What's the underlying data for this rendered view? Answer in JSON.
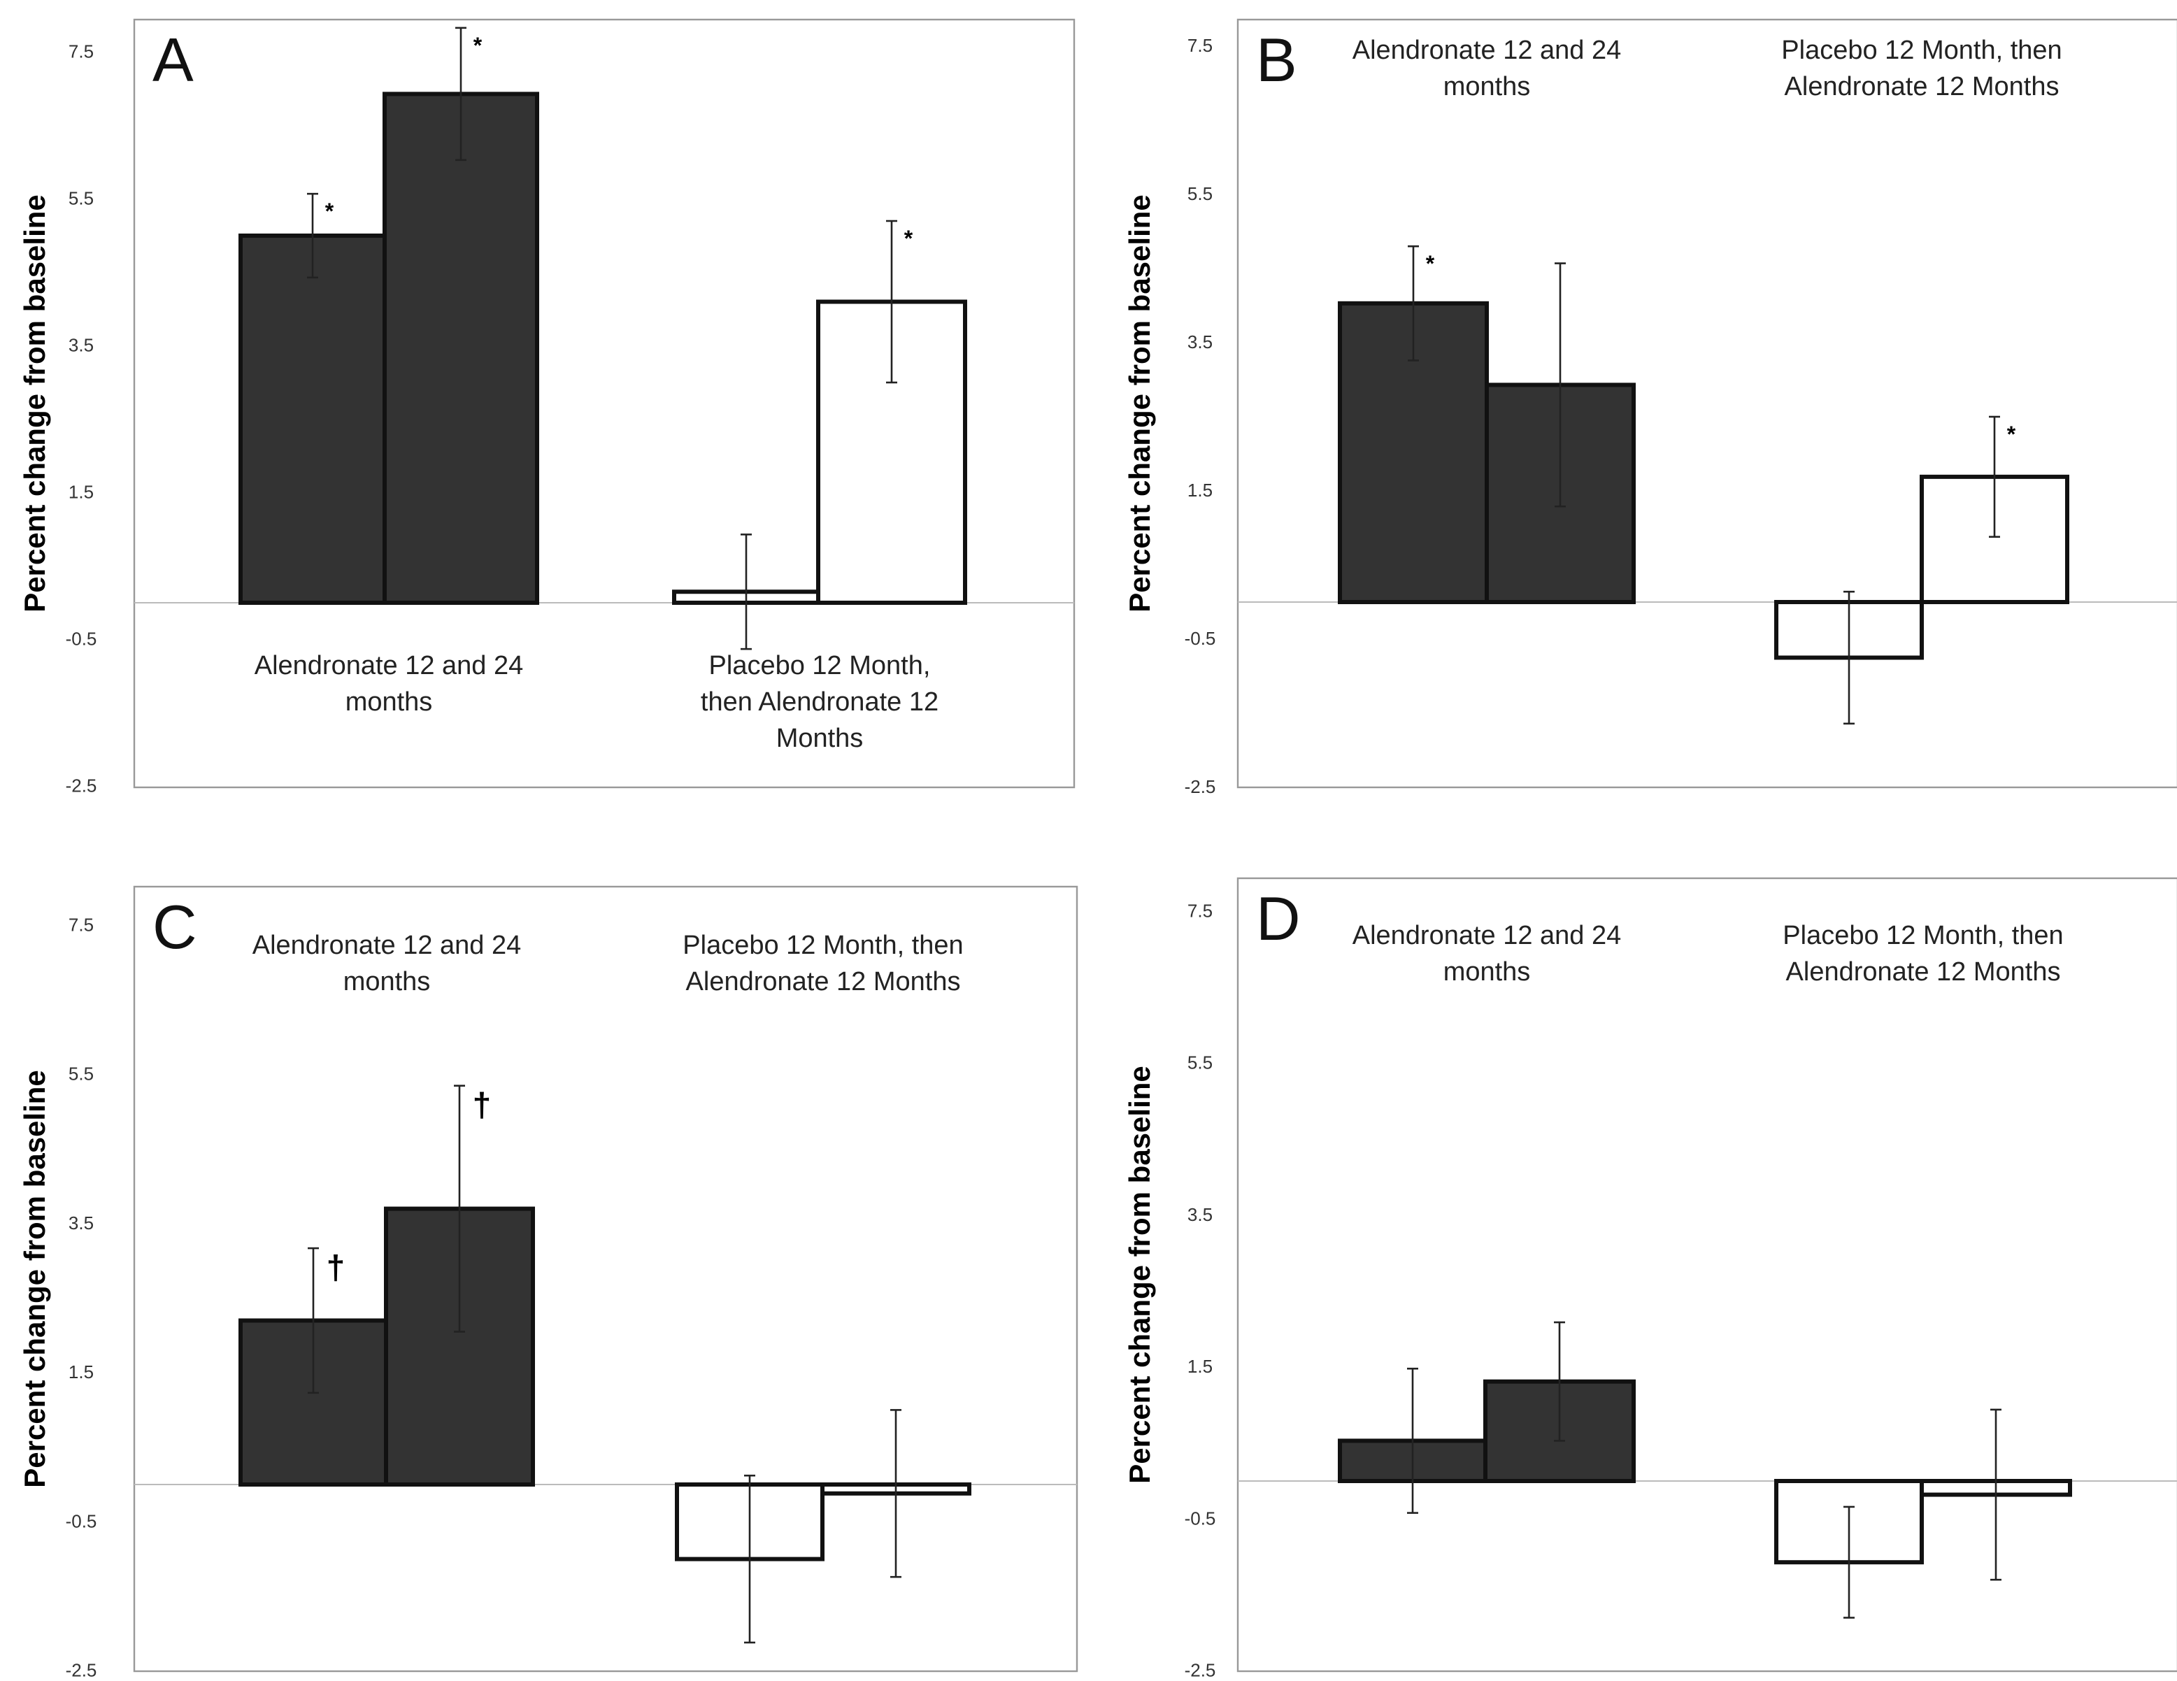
{
  "chart_data": [
    {
      "type": "bar",
      "panel_label": "A",
      "ylabel": "Percent change from baseline",
      "yticks": [
        "7.5",
        "5.5",
        "3.5",
        "1.5",
        "-0.5",
        "-2.5"
      ],
      "ylim": [
        -2.5,
        8.0
      ],
      "groups": [
        {
          "label_lines": [
            "Alendronate 12 and 24",
            "months"
          ],
          "fill": "#333333",
          "bars": [
            {
              "value": 5.0,
              "error": 0.57,
              "annotation": "*"
            },
            {
              "value": 6.93,
              "error": 0.9,
              "annotation": "*"
            }
          ]
        },
        {
          "label_lines": [
            "Placebo 12 Month,",
            "then Alendronate 12",
            "Months"
          ],
          "fill": "#ffffff",
          "bars": [
            {
              "value": 0.15,
              "error": 0.78,
              "annotation": ""
            },
            {
              "value": 4.1,
              "error": 1.1,
              "annotation": "*"
            }
          ]
        }
      ]
    },
    {
      "type": "bar",
      "panel_label": "B",
      "ylabel": "Percent change from baseline",
      "yticks": [
        "7.5",
        "5.5",
        "3.5",
        "1.5",
        "-0.5",
        "-2.5"
      ],
      "ylim": [
        -2.5,
        8.0
      ],
      "groups": [
        {
          "label_lines": [
            "Alendronate 12 and 24",
            "months"
          ],
          "fill": "#333333",
          "bars": [
            {
              "value": 4.03,
              "error": 0.77,
              "annotation": "*"
            },
            {
              "value": 2.93,
              "error": 1.64,
              "annotation": ""
            }
          ]
        },
        {
          "label_lines": [
            "Placebo 12 Month, then",
            "Alendronate 12 Months"
          ],
          "fill": "#ffffff",
          "bars": [
            {
              "value": -0.75,
              "error": 0.89,
              "annotation": ""
            },
            {
              "value": 1.69,
              "error": 0.81,
              "annotation": "*"
            }
          ]
        }
      ]
    },
    {
      "type": "bar",
      "panel_label": "C",
      "ylabel": "Percent change from baseline",
      "yticks": [
        "7.5",
        "5.5",
        "3.5",
        "1.5",
        "-0.5",
        "-2.5"
      ],
      "ylim": [
        -2.5,
        8.0
      ],
      "groups": [
        {
          "label_lines": [
            "Alendronate 12 and 24",
            "months"
          ],
          "fill": "#333333",
          "bars": [
            {
              "value": 2.2,
              "error": 0.97,
              "annotation": "†"
            },
            {
              "value": 3.7,
              "error": 1.65,
              "annotation": "†"
            }
          ]
        },
        {
          "label_lines": [
            "Placebo 12 Month, then",
            "Alendronate 12 Months"
          ],
          "fill": "#ffffff",
          "bars": [
            {
              "value": -1.0,
              "error": 1.12,
              "annotation": ""
            },
            {
              "value": -0.12,
              "error": 1.12,
              "annotation": ""
            }
          ]
        }
      ]
    },
    {
      "type": "bar",
      "panel_label": "D",
      "ylabel": "Percent change from baseline",
      "yticks": [
        "7.5",
        "5.5",
        "3.5",
        "1.5",
        "-0.5",
        "-2.5"
      ],
      "ylim": [
        -2.5,
        8.0
      ],
      "groups": [
        {
          "label_lines": [
            "Alendronate 12 and 24",
            "months"
          ],
          "fill": "#333333",
          "bars": [
            {
              "value": 0.53,
              "error": 0.95,
              "annotation": ""
            },
            {
              "value": 1.31,
              "error": 0.78,
              "annotation": ""
            }
          ]
        },
        {
          "label_lines": [
            "Placebo 12 Month, then",
            "Alendronate 12 Months"
          ],
          "fill": "#ffffff",
          "bars": [
            {
              "value": -1.07,
              "error": 0.73,
              "annotation": ""
            },
            {
              "value": -0.18,
              "error": 1.12,
              "annotation": ""
            }
          ]
        }
      ]
    }
  ]
}
